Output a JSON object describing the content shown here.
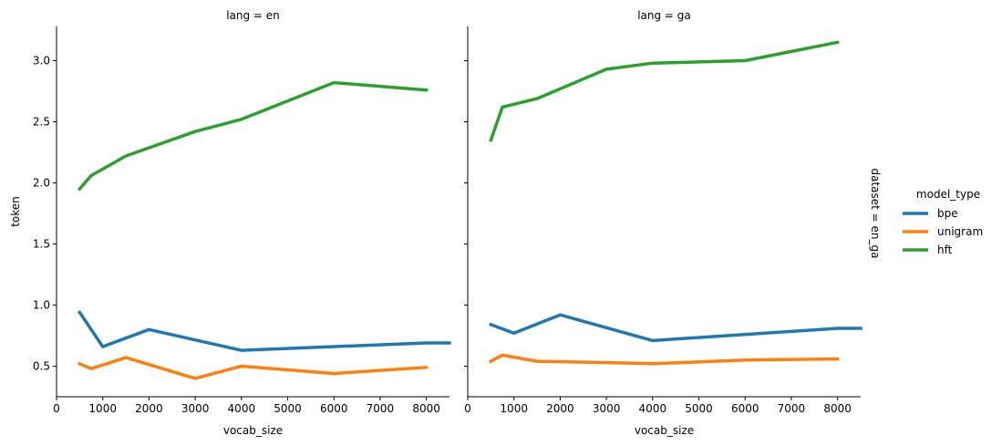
{
  "chart_data": {
    "type": "line",
    "row_label": "dataset = en_ga",
    "xlabel": "vocab_size",
    "ylabel": "token",
    "xlim": [
      0,
      8500
    ],
    "ylim": [
      0.25,
      3.28
    ],
    "xticks": [
      0,
      1000,
      2000,
      3000,
      4000,
      5000,
      6000,
      7000,
      8000
    ],
    "yticks": [
      0.5,
      1.0,
      1.5,
      2.0,
      2.5,
      3.0
    ],
    "ytick_labels": [
      "0.5",
      "1.0",
      "1.5",
      "2.0",
      "2.5",
      "3.0"
    ],
    "grid": false,
    "legend": {
      "title": "model_type",
      "placement": "right",
      "entries": [
        "bpe",
        "unigram",
        "hft"
      ]
    },
    "colors": {
      "bpe": "#1f77b4",
      "unigram": "#ff7f0e",
      "hft": "#2ca02c"
    },
    "panels": [
      {
        "title": "lang = en",
        "series": [
          {
            "name": "bpe",
            "x": [
              500,
              1000,
              2000,
              4000,
              8000,
              8500
            ],
            "y": [
              0.94,
              0.66,
              0.8,
              0.63,
              0.69,
              0.69
            ]
          },
          {
            "name": "unigram",
            "x": [
              500,
              750,
              1500,
              3000,
              4000,
              6000,
              8000
            ],
            "y": [
              0.52,
              0.48,
              0.57,
              0.4,
              0.5,
              0.44,
              0.49
            ]
          },
          {
            "name": "hft",
            "x": [
              500,
              750,
              1500,
              3000,
              4000,
              6000,
              8000
            ],
            "y": [
              1.95,
              2.06,
              2.22,
              2.42,
              2.52,
              2.82,
              2.76
            ]
          }
        ]
      },
      {
        "title": "lang = ga",
        "series": [
          {
            "name": "bpe",
            "x": [
              500,
              1000,
              2000,
              4000,
              8000,
              8500
            ],
            "y": [
              0.84,
              0.77,
              0.92,
              0.71,
              0.81,
              0.81
            ]
          },
          {
            "name": "unigram",
            "x": [
              500,
              750,
              1500,
              3000,
              4000,
              6000,
              8000
            ],
            "y": [
              0.54,
              0.59,
              0.54,
              0.53,
              0.52,
              0.55,
              0.56
            ]
          },
          {
            "name": "hft",
            "x": [
              500,
              750,
              1500,
              3000,
              4000,
              6000,
              8000
            ],
            "y": [
              2.35,
              2.62,
              2.69,
              2.93,
              2.98,
              3.0,
              3.15
            ]
          }
        ]
      }
    ]
  }
}
